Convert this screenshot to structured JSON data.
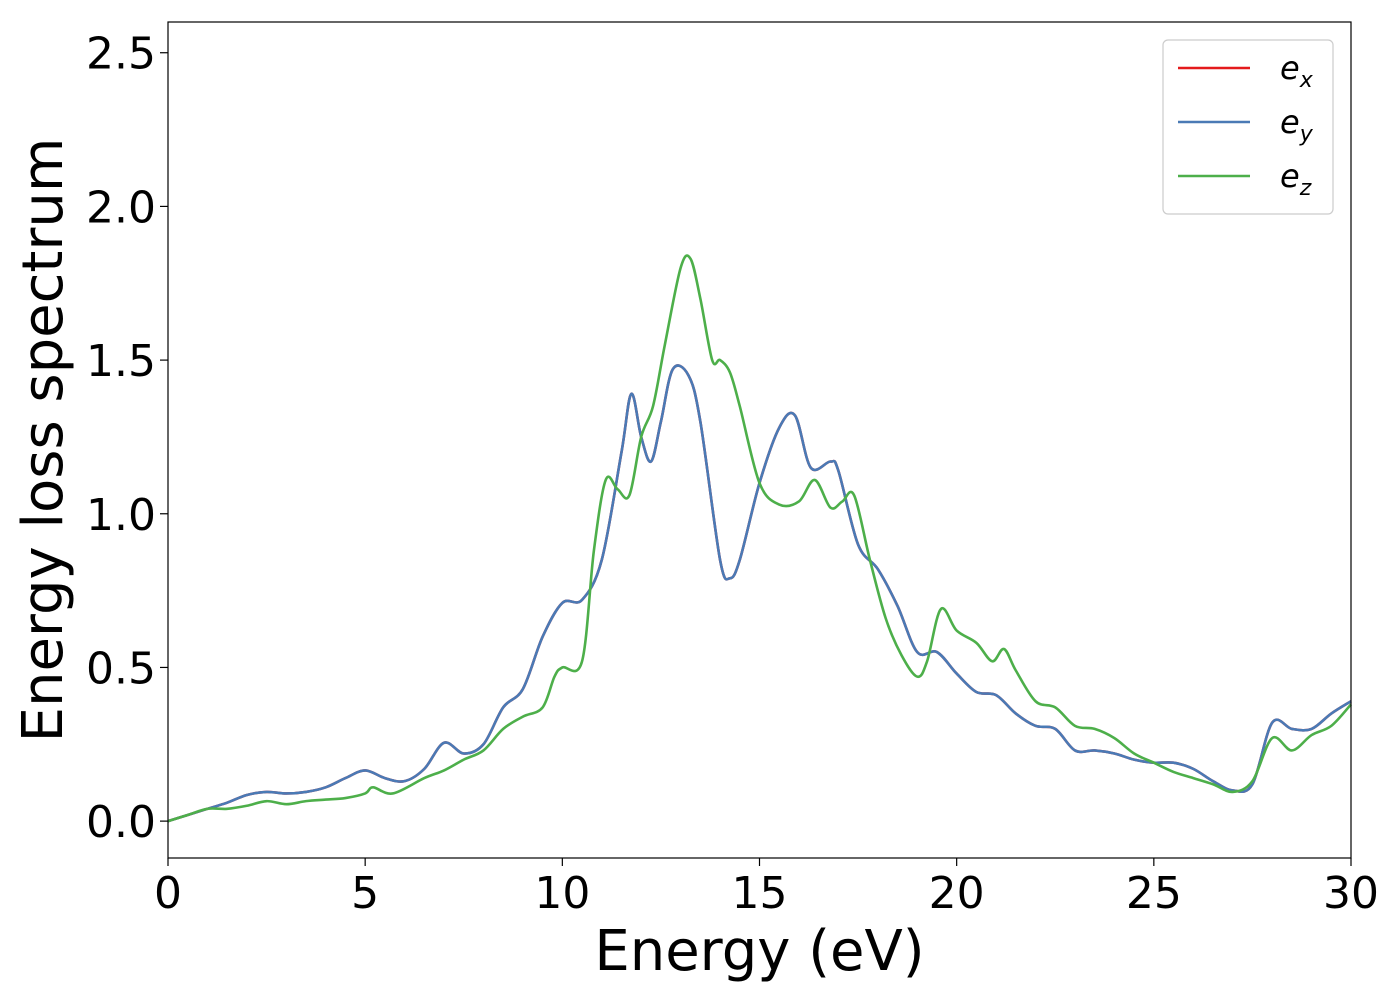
{
  "chart_data": {
    "type": "line",
    "title": "",
    "xlabel": "Energy (eV)",
    "ylabel": "Energy loss spectrum",
    "xlim": [
      0,
      30
    ],
    "ylim": [
      -0.12,
      2.6
    ],
    "xticks": [
      0,
      5,
      10,
      15,
      20,
      25,
      30
    ],
    "xtick_labels": [
      "0",
      "5",
      "10",
      "15",
      "20",
      "25",
      "30"
    ],
    "yticks": [
      0.0,
      0.5,
      1.0,
      1.5,
      2.0,
      2.5
    ],
    "ytick_labels": [
      "0.0",
      "0.5",
      "1.0",
      "1.5",
      "2.0",
      "2.5"
    ],
    "grid": false,
    "legend_position": "top-right",
    "series": [
      {
        "name": "e_x",
        "legend_base": "e",
        "legend_sub": "x",
        "color": "#e41a1c",
        "x": [
          0,
          0.5,
          1,
          1.5,
          2,
          2.5,
          3,
          3.5,
          4,
          4.5,
          5,
          5.5,
          6,
          6.5,
          7,
          7.5,
          8,
          8.5,
          9,
          9.5,
          10,
          10.5,
          11,
          11.5,
          11.75,
          12,
          12.25,
          12.5,
          12.8,
          13.2,
          13.5,
          14,
          14.25,
          14.5,
          15,
          15.5,
          15.9,
          16.3,
          16.8,
          17,
          17.5,
          18,
          18.5,
          19,
          19.5,
          20,
          20.5,
          21,
          21.5,
          22,
          22.5,
          23,
          23.5,
          24,
          24.5,
          25,
          25.5,
          26,
          26.5,
          27,
          27.5,
          28,
          28.5,
          29,
          29.5,
          30
        ],
        "y": [
          0.0,
          0.02,
          0.04,
          0.06,
          0.085,
          0.095,
          0.09,
          0.095,
          0.11,
          0.14,
          0.165,
          0.14,
          0.13,
          0.17,
          0.255,
          0.22,
          0.25,
          0.37,
          0.43,
          0.6,
          0.71,
          0.72,
          0.85,
          1.2,
          1.39,
          1.25,
          1.17,
          1.3,
          1.47,
          1.45,
          1.3,
          0.85,
          0.79,
          0.85,
          1.1,
          1.28,
          1.32,
          1.15,
          1.17,
          1.14,
          0.9,
          0.82,
          0.7,
          0.55,
          0.55,
          0.48,
          0.42,
          0.41,
          0.35,
          0.31,
          0.3,
          0.23,
          0.23,
          0.22,
          0.2,
          0.19,
          0.19,
          0.17,
          0.13,
          0.1,
          0.12,
          0.32,
          0.3,
          0.3,
          0.35,
          0.39
        ]
      },
      {
        "name": "e_y",
        "legend_base": "e",
        "legend_sub": "y",
        "color": "#4a7ab5",
        "x": [
          0,
          0.5,
          1,
          1.5,
          2,
          2.5,
          3,
          3.5,
          4,
          4.5,
          5,
          5.5,
          6,
          6.5,
          7,
          7.5,
          8,
          8.5,
          9,
          9.5,
          10,
          10.5,
          11,
          11.5,
          11.75,
          12,
          12.25,
          12.5,
          12.8,
          13.2,
          13.5,
          14,
          14.25,
          14.5,
          15,
          15.5,
          15.9,
          16.3,
          16.8,
          17,
          17.5,
          18,
          18.5,
          19,
          19.5,
          20,
          20.5,
          21,
          21.5,
          22,
          22.5,
          23,
          23.5,
          24,
          24.5,
          25,
          25.5,
          26,
          26.5,
          27,
          27.5,
          28,
          28.5,
          29,
          29.5,
          30
        ],
        "y": [
          0.0,
          0.02,
          0.04,
          0.06,
          0.085,
          0.095,
          0.09,
          0.095,
          0.11,
          0.14,
          0.165,
          0.14,
          0.13,
          0.17,
          0.255,
          0.22,
          0.25,
          0.37,
          0.43,
          0.6,
          0.71,
          0.72,
          0.85,
          1.2,
          1.39,
          1.25,
          1.17,
          1.3,
          1.47,
          1.45,
          1.3,
          0.85,
          0.79,
          0.85,
          1.1,
          1.28,
          1.32,
          1.15,
          1.17,
          1.14,
          0.9,
          0.82,
          0.7,
          0.55,
          0.55,
          0.48,
          0.42,
          0.41,
          0.35,
          0.31,
          0.3,
          0.23,
          0.23,
          0.22,
          0.2,
          0.19,
          0.19,
          0.17,
          0.13,
          0.1,
          0.12,
          0.32,
          0.3,
          0.3,
          0.35,
          0.39
        ]
      },
      {
        "name": "e_z",
        "legend_base": "e",
        "legend_sub": "z",
        "color": "#4daf4a",
        "x": [
          0,
          0.5,
          1,
          1.5,
          2,
          2.5,
          3,
          3.5,
          4,
          4.5,
          5,
          5.2,
          5.7,
          6.5,
          7,
          7.5,
          8,
          8.5,
          9,
          9.5,
          9.8,
          10,
          10.5,
          10.8,
          11.1,
          11.4,
          11.7,
          12,
          12.3,
          12.6,
          13,
          13.25,
          13.5,
          13.8,
          14,
          14.25,
          14.5,
          15,
          15.5,
          16,
          16.4,
          16.8,
          17.1,
          17.4,
          17.8,
          18.2,
          18.6,
          19,
          19.25,
          19.6,
          20,
          20.5,
          20.9,
          21.2,
          21.5,
          22,
          22.5,
          23,
          23.5,
          24,
          24.5,
          25,
          25.5,
          26,
          26.5,
          27,
          27.5,
          28,
          28.5,
          29,
          29.5,
          30
        ],
        "y": [
          0.0,
          0.02,
          0.04,
          0.04,
          0.05,
          0.065,
          0.055,
          0.065,
          0.07,
          0.075,
          0.09,
          0.11,
          0.09,
          0.14,
          0.165,
          0.2,
          0.23,
          0.3,
          0.34,
          0.37,
          0.47,
          0.5,
          0.52,
          0.88,
          1.11,
          1.08,
          1.06,
          1.25,
          1.35,
          1.55,
          1.8,
          1.83,
          1.7,
          1.5,
          1.5,
          1.46,
          1.35,
          1.1,
          1.03,
          1.04,
          1.11,
          1.02,
          1.04,
          1.06,
          0.85,
          0.66,
          0.54,
          0.47,
          0.52,
          0.69,
          0.62,
          0.58,
          0.52,
          0.56,
          0.49,
          0.39,
          0.37,
          0.31,
          0.3,
          0.27,
          0.22,
          0.19,
          0.16,
          0.14,
          0.12,
          0.095,
          0.13,
          0.27,
          0.23,
          0.28,
          0.31,
          0.38
        ]
      }
    ]
  }
}
